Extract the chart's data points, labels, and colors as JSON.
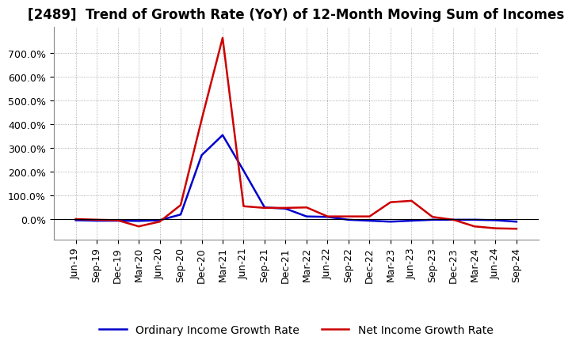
{
  "title": "[2489]  Trend of Growth Rate (YoY) of 12-Month Moving Sum of Incomes",
  "x_labels": [
    "Jun-19",
    "Sep-19",
    "Dec-19",
    "Mar-20",
    "Jun-20",
    "Sep-20",
    "Dec-20",
    "Mar-21",
    "Jun-21",
    "Sep-21",
    "Dec-21",
    "Mar-22",
    "Jun-22",
    "Sep-22",
    "Dec-22",
    "Mar-23",
    "Jun-23",
    "Sep-23",
    "Dec-23",
    "Mar-24",
    "Jun-24",
    "Sep-24"
  ],
  "ordinary_income": [
    -0.04,
    -0.06,
    -0.06,
    -0.07,
    -0.04,
    0.2,
    2.7,
    3.55,
    2.05,
    0.5,
    0.45,
    0.12,
    0.1,
    -0.02,
    -0.06,
    -0.1,
    -0.06,
    -0.02,
    -0.02,
    -0.02,
    -0.04,
    -0.1
  ],
  "net_income": [
    0.01,
    -0.02,
    -0.04,
    -0.3,
    -0.1,
    0.6,
    4.2,
    7.65,
    0.55,
    0.48,
    0.48,
    0.5,
    0.12,
    0.12,
    0.12,
    0.72,
    0.78,
    0.1,
    -0.02,
    -0.3,
    -0.38,
    -0.4
  ],
  "ordinary_color": "#0000cc",
  "net_color": "#cc0000",
  "background_color": "#ffffff",
  "grid_color": "#999999",
  "ylim_min": -0.85,
  "ylim_max": 8.1,
  "yticks": [
    0.0,
    1.0,
    2.0,
    3.0,
    4.0,
    5.0,
    6.0,
    7.0
  ],
  "legend_ordinary": "Ordinary Income Growth Rate",
  "legend_net": "Net Income Growth Rate",
  "title_fontsize": 12,
  "tick_fontsize": 9,
  "legend_fontsize": 10
}
